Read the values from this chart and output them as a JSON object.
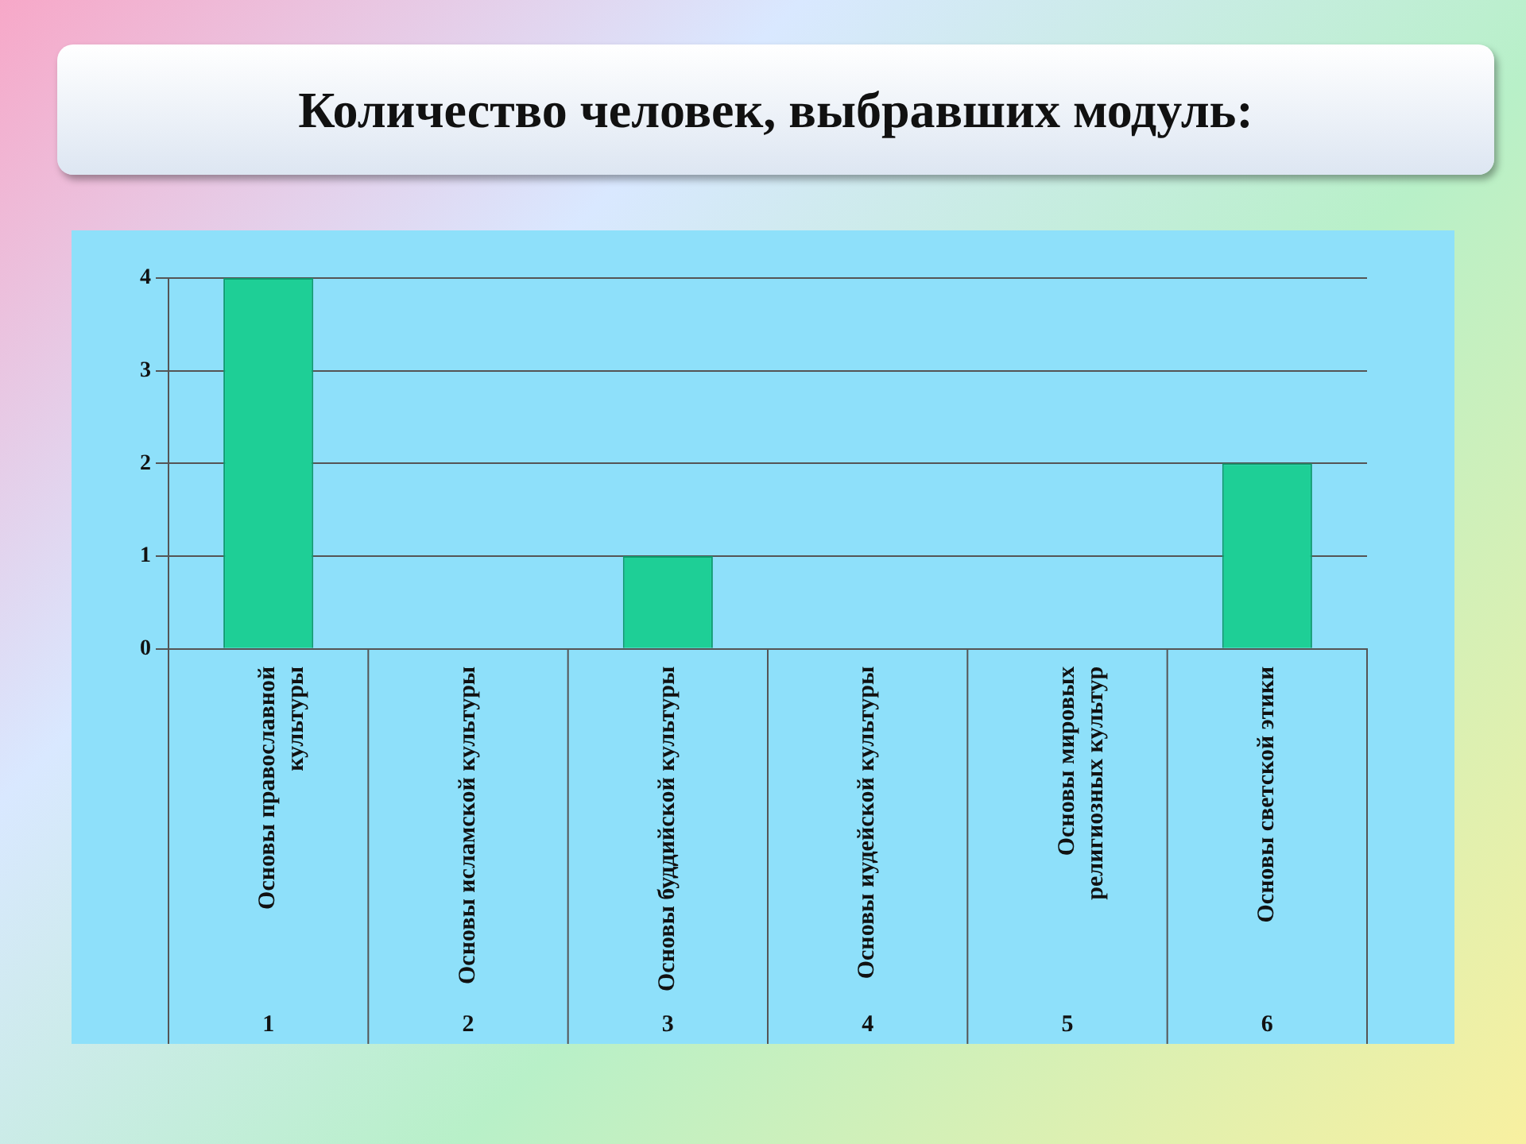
{
  "chart_data": {
    "type": "bar",
    "title": "Количество человек, выбравших модуль:",
    "categories": [
      "Основы православной культуры",
      "Основы исламской культуры",
      "Основы буддийской культуры",
      "Основы иудейской культуры",
      "Основы мировых религиозных культур",
      "Основы светской этики"
    ],
    "values": [
      4,
      0,
      1,
      0,
      0,
      2
    ],
    "color": "#1ecf96",
    "ylim": [
      0,
      4
    ],
    "yticks": [
      0,
      1,
      2,
      3,
      4
    ],
    "grid": "y",
    "legend": false,
    "annotations": [
      "1",
      "2",
      "3",
      "4",
      "5",
      "6"
    ]
  }
}
